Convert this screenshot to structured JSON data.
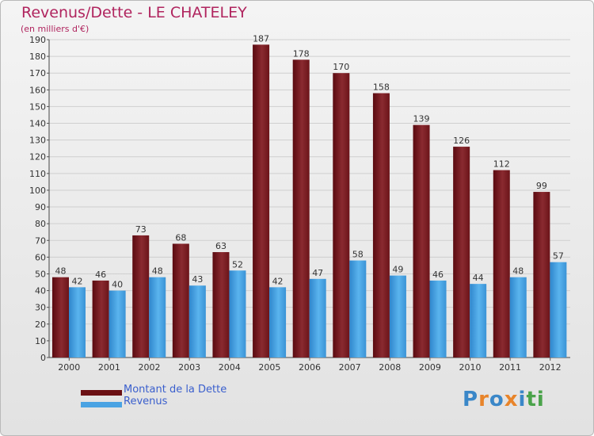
{
  "chart_data": {
    "type": "bar",
    "title": "Revenus/Dette - LE CHATELEY",
    "subtitle": "(en milliers d'€)",
    "categories": [
      "2000",
      "2001",
      "2002",
      "2003",
      "2004",
      "2005",
      "2006",
      "2007",
      "2008",
      "2009",
      "2010",
      "2011",
      "2012"
    ],
    "series": [
      {
        "name": "Montant de la Dette",
        "color": "#7b1c22",
        "values": [
          48,
          46,
          73,
          68,
          63,
          187,
          178,
          170,
          158,
          139,
          126,
          112,
          99
        ]
      },
      {
        "name": "Revenus",
        "color": "#4aa3e3",
        "values": [
          42,
          40,
          48,
          43,
          52,
          42,
          47,
          58,
          49,
          46,
          44,
          48,
          57
        ]
      }
    ],
    "ylim": [
      0,
      190
    ],
    "yticks": [
      0,
      10,
      20,
      30,
      40,
      50,
      60,
      70,
      80,
      90,
      100,
      110,
      120,
      130,
      140,
      150,
      160,
      170,
      180,
      190
    ],
    "grid": true,
    "legend_position": "bottom-left"
  },
  "logo": {
    "letters": [
      "P",
      "r",
      "o",
      "x",
      "i",
      "t",
      "i"
    ],
    "colors": [
      "#3a87c8",
      "#e8842a",
      "#3a87c8",
      "#e8842a",
      "#3a87c8",
      "#4aa34a",
      "#4aa34a"
    ]
  }
}
